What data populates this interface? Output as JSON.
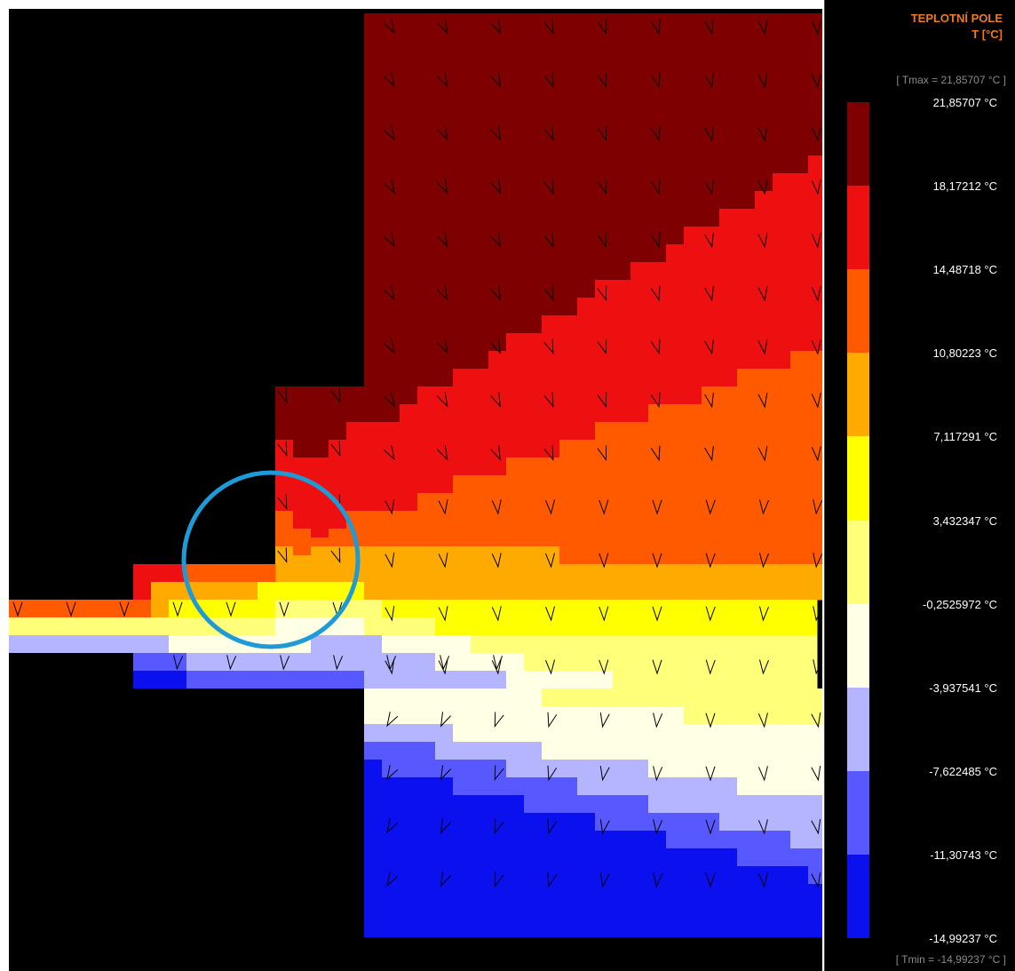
{
  "legend": {
    "title_line1": "TEPLOTNÍ POLE",
    "title_line2": "T [°C]",
    "tmax_text": "[ Tmax = 21,85707 °C ]",
    "tmin_text": "[ Tmin = -14,99237 °C ]",
    "scale_labels": [
      "21,85707 °C",
      "18,17212 °C",
      "14,48718 °C",
      "10,80223 °C",
      "7,117291 °C",
      "3,432347 °C",
      "-0,2525972 °C",
      "-3,937541 °C",
      "-7,622485 °C",
      "-11,30743 °C",
      "-14,99237 °C"
    ],
    "band_colors": [
      "#7f0000",
      "#ee1010",
      "#ff5a00",
      "#ffaa00",
      "#ffff00",
      "#ffff7a",
      "#ffffe6",
      "#b4b4ff",
      "#5858ff",
      "#0a10ee"
    ]
  },
  "chart_data": {
    "type": "heatmap",
    "title": "TEPLOTNÍ POLE",
    "unit": "°C",
    "tmax": 21.85707,
    "tmin": -14.99237,
    "bands": [
      {
        "from": 18.17212,
        "to": 21.85707,
        "color": "#7f0000"
      },
      {
        "from": 14.48718,
        "to": 18.17212,
        "color": "#ee1010"
      },
      {
        "from": 10.80223,
        "to": 14.48718,
        "color": "#ff5a00"
      },
      {
        "from": 7.117291,
        "to": 10.80223,
        "color": "#ffaa00"
      },
      {
        "from": 3.432347,
        "to": 7.117291,
        "color": "#ffff00"
      },
      {
        "from": -0.2525972,
        "to": 3.432347,
        "color": "#ffff7a"
      },
      {
        "from": -3.937541,
        "to": -0.2525972,
        "color": "#ffffe6"
      },
      {
        "from": -7.622485,
        "to": -3.937541,
        "color": "#b4b4ff"
      },
      {
        "from": -11.30743,
        "to": -7.622485,
        "color": "#5858ff"
      },
      {
        "from": -14.99237,
        "to": -11.30743,
        "color": "#0a10ee"
      }
    ]
  },
  "highlight_circle_color": "#1e9ad6",
  "flow_arrow_color": "#000000"
}
